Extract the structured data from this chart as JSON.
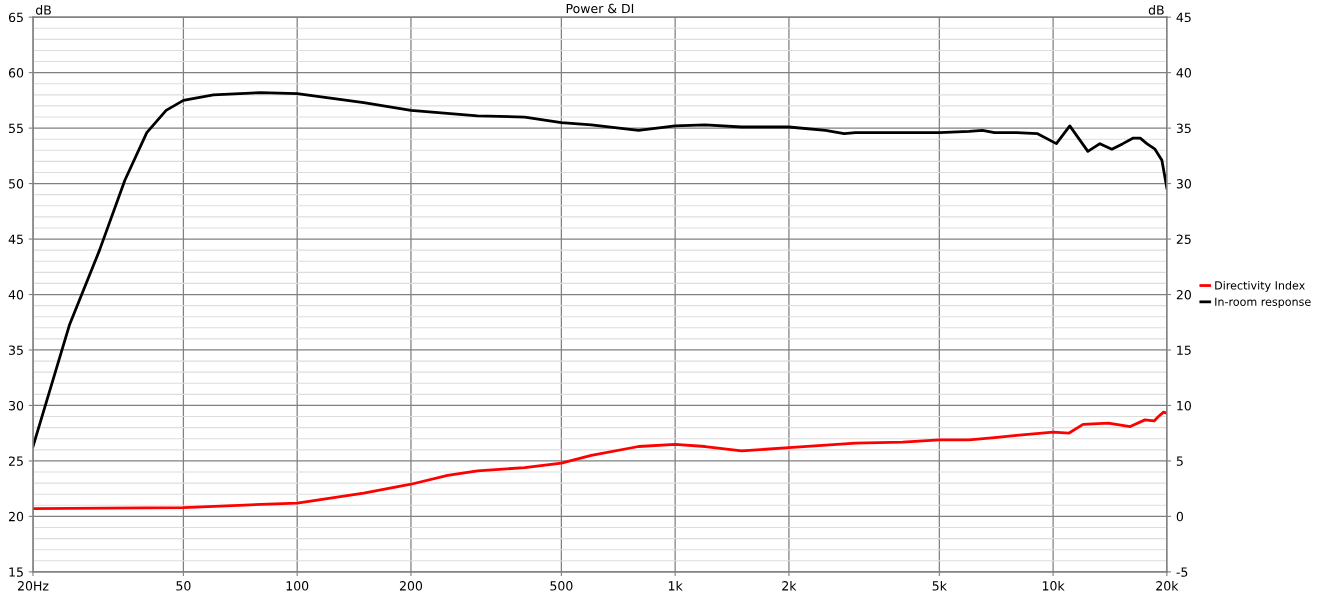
{
  "chart_data": {
    "type": "line",
    "title": "Power & DI",
    "ylabel": "dB",
    "y2label": "dB",
    "log": "x",
    "grid": true,
    "legend": "right",
    "xlim": [
      20,
      20000
    ],
    "xticks": [
      {
        "value": 20,
        "label": "20Hz"
      },
      50,
      100,
      200,
      500,
      {
        "value": 1000,
        "label": "1k"
      },
      {
        "value": 2000,
        "label": "2k"
      },
      {
        "value": 5000,
        "label": "5k"
      },
      {
        "value": 10000,
        "label": "10k"
      },
      {
        "value": 20000,
        "label": "20k"
      }
    ],
    "ylim": [
      15,
      65
    ],
    "yticks": [
      15,
      20,
      25,
      30,
      35,
      40,
      45,
      50,
      55,
      60,
      65
    ],
    "y2lim": [
      -5,
      45
    ],
    "y2ticks": [
      -5,
      0,
      5,
      10,
      15,
      20,
      25,
      30,
      35,
      40,
      45
    ],
    "series": [
      {
        "name": "Directivity Index",
        "color": "#ff0000",
        "axis": "y2",
        "x": [
          20,
          50,
          70,
          100,
          150,
          200,
          250,
          300,
          400,
          500,
          600,
          800,
          1000,
          1200,
          1500,
          2000,
          3000,
          4000,
          5000,
          6000,
          7000,
          8000,
          10000,
          11000,
          12000,
          14000,
          16000,
          17500,
          18500,
          19000,
          19600,
          20000
        ],
        "values": [
          0.7,
          0.8,
          1.0,
          1.2,
          2.1,
          2.9,
          3.7,
          4.1,
          4.4,
          4.8,
          5.5,
          6.3,
          6.5,
          6.3,
          5.9,
          6.2,
          6.6,
          6.7,
          6.9,
          6.9,
          7.1,
          7.3,
          7.6,
          7.5,
          8.3,
          8.4,
          8.1,
          8.7,
          8.6,
          9.0,
          9.4,
          9.3
        ]
      },
      {
        "name": "In-room response",
        "color": "#000000",
        "x": [
          20,
          25,
          30,
          35,
          40,
          45,
          50,
          60,
          80,
          100,
          150,
          200,
          300,
          400,
          500,
          600,
          800,
          1000,
          1200,
          1500,
          2000,
          2500,
          2800,
          3000,
          4000,
          5000,
          6000,
          6500,
          7000,
          8000,
          9100,
          10200,
          11070,
          12360,
          13300,
          14300,
          15300,
          16300,
          17000,
          17700,
          18600,
          19400,
          20000
        ],
        "values": [
          26.3,
          37.3,
          44.0,
          50.3,
          54.6,
          56.6,
          57.5,
          58.0,
          58.2,
          58.1,
          57.3,
          56.6,
          56.1,
          56.0,
          55.5,
          55.3,
          54.8,
          55.2,
          55.3,
          55.1,
          55.1,
          54.8,
          54.5,
          54.6,
          54.6,
          54.6,
          54.7,
          54.8,
          54.6,
          54.6,
          54.5,
          53.6,
          55.2,
          52.9,
          53.6,
          53.1,
          53.6,
          54.1,
          54.1,
          53.6,
          53.1,
          52.1,
          49.6
        ]
      }
    ]
  }
}
